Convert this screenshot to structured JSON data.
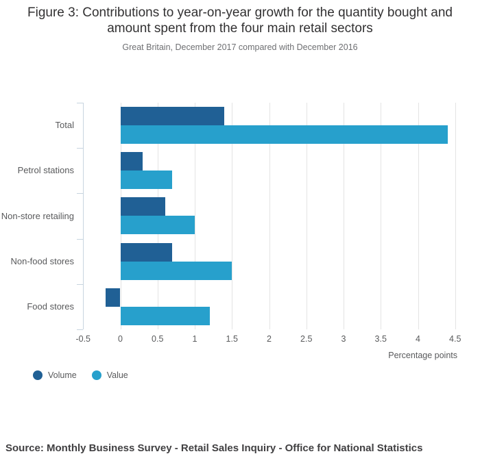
{
  "header": {
    "title": "Figure 3: Contributions to year-on-year growth for the quantity bought and amount spent from the four main retail sectors",
    "subtitle": "Great Britain, December 2017 compared with December 2016"
  },
  "chart_data": {
    "type": "bar",
    "orientation": "horizontal",
    "categories": [
      "Total",
      "Petrol stations",
      "Non-store retailing",
      "Non-food stores",
      "Food stores"
    ],
    "series": [
      {
        "name": "Volume",
        "color": "#206095",
        "values": [
          1.4,
          0.3,
          0.6,
          0.7,
          -0.2
        ]
      },
      {
        "name": "Value",
        "color": "#27A0CC",
        "values": [
          4.4,
          0.7,
          1.0,
          1.5,
          1.2
        ]
      }
    ],
    "xlabel": "Percentage points",
    "xlim": [
      -0.5,
      4.5
    ],
    "xticks": [
      -0.5,
      0,
      0.5,
      1,
      1.5,
      2,
      2.5,
      3,
      3.5,
      4,
      4.5
    ],
    "grid": true,
    "legend_position": "bottom-left"
  },
  "source": "Source: Monthly Business Survey - Retail Sales Inquiry - Office for National Statistics",
  "colors": {
    "grid": "#e3e3e3",
    "axis": "#c7d4df",
    "title": "#323132",
    "subtitle": "#6e6f72",
    "muted_text": "#58595b",
    "source_text": "#414042"
  }
}
